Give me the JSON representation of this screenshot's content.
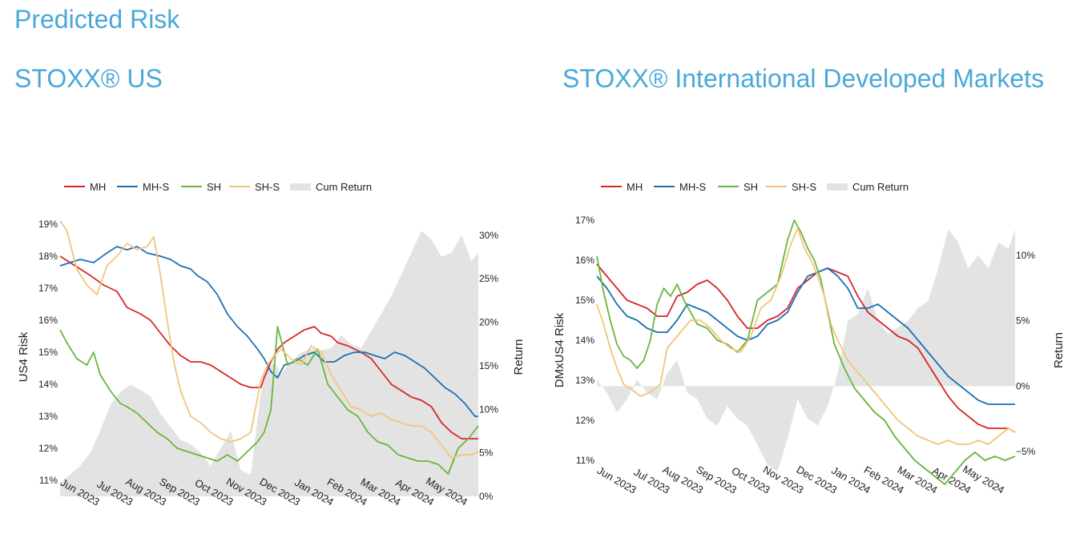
{
  "page": {
    "title": "Predicted Risk",
    "left_title": "STOXX® US",
    "right_title": "STOXX® International Developed Markets"
  },
  "colors": {
    "MH": "#d62728",
    "MH-S": "#1f6fb4",
    "SH": "#6ab53c",
    "SH-S": "#f2c57c",
    "Cum Return": "#e3e3e3"
  },
  "legend": [
    "MH",
    "MH-S",
    "SH",
    "SH-S",
    "Cum Return"
  ],
  "chart_data": [
    {
      "type": "line",
      "panel": "left",
      "ylabel": "US4 Risk",
      "y2label": "Return",
      "x_ticks": [
        "Jun 2023",
        "Jul 2023",
        "Aug 2023",
        "Sep 2023",
        "Oct 2023",
        "Nov 2023",
        "Dec 2023",
        "Jan 2024",
        "Feb 2024",
        "Mar 2024",
        "Apr 2024",
        "May 2024"
      ],
      "x_range": [
        0,
        12.5
      ],
      "ylim": [
        10.5,
        19.2
      ],
      "y_ticks": [
        "11%",
        "12%",
        "13%",
        "14%",
        "15%",
        "16%",
        "17%",
        "18%",
        "19%"
      ],
      "y2lim": [
        0,
        32
      ],
      "y2_ticks": [
        "0%",
        "5%",
        "10%",
        "15%",
        "20%",
        "25%",
        "30%"
      ],
      "series": [
        {
          "name": "MH",
          "axis": "left",
          "x": [
            0,
            0.3,
            0.6,
            0.9,
            1.3,
            1.7,
            2.0,
            2.4,
            2.7,
            3.0,
            3.3,
            3.6,
            3.9,
            4.2,
            4.5,
            4.8,
            5.1,
            5.4,
            5.7,
            6.0,
            6.1,
            6.3,
            6.5,
            6.7,
            7.0,
            7.3,
            7.6,
            7.8,
            8.1,
            8.3,
            8.6,
            9.0,
            9.3,
            9.6,
            9.9,
            10.2,
            10.5,
            10.8,
            11.1,
            11.4,
            11.7,
            12.0,
            12.3,
            12.5
          ],
          "y": [
            18.0,
            17.8,
            17.6,
            17.4,
            17.1,
            16.9,
            16.4,
            16.2,
            16.0,
            15.6,
            15.2,
            14.9,
            14.7,
            14.7,
            14.6,
            14.4,
            14.2,
            14.0,
            13.9,
            13.9,
            14.2,
            14.7,
            15.1,
            15.3,
            15.5,
            15.7,
            15.8,
            15.6,
            15.5,
            15.3,
            15.2,
            15.0,
            14.8,
            14.4,
            14.0,
            13.8,
            13.6,
            13.5,
            13.3,
            12.8,
            12.5,
            12.3,
            12.3,
            12.3
          ]
        },
        {
          "name": "MH-S",
          "axis": "left",
          "x": [
            0,
            0.3,
            0.6,
            1.0,
            1.4,
            1.7,
            2.0,
            2.3,
            2.6,
            3.0,
            3.3,
            3.6,
            3.9,
            4.1,
            4.4,
            4.7,
            5.0,
            5.3,
            5.6,
            5.9,
            6.1,
            6.3,
            6.5,
            6.7,
            7.0,
            7.3,
            7.6,
            7.9,
            8.2,
            8.5,
            8.8,
            9.1,
            9.4,
            9.7,
            10.0,
            10.3,
            10.6,
            10.9,
            11.2,
            11.5,
            11.8,
            12.1,
            12.4,
            12.5
          ],
          "y": [
            17.7,
            17.8,
            17.9,
            17.8,
            18.1,
            18.3,
            18.2,
            18.3,
            18.1,
            18.0,
            17.9,
            17.7,
            17.6,
            17.4,
            17.2,
            16.8,
            16.2,
            15.8,
            15.5,
            15.1,
            14.8,
            14.4,
            14.2,
            14.6,
            14.7,
            14.9,
            15.0,
            14.7,
            14.7,
            14.9,
            15.0,
            15.0,
            14.9,
            14.8,
            15.0,
            14.9,
            14.7,
            14.5,
            14.2,
            13.9,
            13.7,
            13.4,
            13.0,
            13.0
          ]
        },
        {
          "name": "SH",
          "axis": "left",
          "x": [
            0,
            0.2,
            0.5,
            0.8,
            1.0,
            1.2,
            1.5,
            1.8,
            2.0,
            2.3,
            2.6,
            2.9,
            3.2,
            3.5,
            3.8,
            4.1,
            4.4,
            4.7,
            5.0,
            5.3,
            5.6,
            5.9,
            6.1,
            6.3,
            6.5,
            6.8,
            7.1,
            7.4,
            7.7,
            8.0,
            8.3,
            8.6,
            8.9,
            9.2,
            9.5,
            9.8,
            10.1,
            10.4,
            10.7,
            11.0,
            11.3,
            11.6,
            11.9,
            12.2,
            12.5
          ],
          "y": [
            15.7,
            15.3,
            14.8,
            14.6,
            15.0,
            14.3,
            13.8,
            13.4,
            13.3,
            13.1,
            12.8,
            12.5,
            12.3,
            12.0,
            11.9,
            11.8,
            11.7,
            11.6,
            11.8,
            11.6,
            11.9,
            12.2,
            12.5,
            13.2,
            15.8,
            14.6,
            14.8,
            14.6,
            15.1,
            14.0,
            13.6,
            13.2,
            13.0,
            12.5,
            12.2,
            12.1,
            11.8,
            11.7,
            11.6,
            11.6,
            11.5,
            11.2,
            12.0,
            12.3,
            12.7
          ]
        },
        {
          "name": "SH-S",
          "axis": "left",
          "x": [
            0,
            0.2,
            0.5,
            0.8,
            1.1,
            1.4,
            1.7,
            2.0,
            2.3,
            2.6,
            2.8,
            3.0,
            3.2,
            3.4,
            3.6,
            3.9,
            4.2,
            4.5,
            4.8,
            5.1,
            5.4,
            5.7,
            6.0,
            6.2,
            6.4,
            6.6,
            6.9,
            7.2,
            7.5,
            7.8,
            8.1,
            8.4,
            8.7,
            9.0,
            9.3,
            9.6,
            9.9,
            10.2,
            10.5,
            10.8,
            11.1,
            11.4,
            11.7,
            12.0,
            12.3,
            12.5
          ],
          "y": [
            19.1,
            18.8,
            17.6,
            17.1,
            16.8,
            17.7,
            18.0,
            18.4,
            18.2,
            18.3,
            18.6,
            17.4,
            16.0,
            14.7,
            13.8,
            13.0,
            12.8,
            12.5,
            12.3,
            12.2,
            12.3,
            12.5,
            14.1,
            14.6,
            14.9,
            15.1,
            14.8,
            14.6,
            15.2,
            15.0,
            14.3,
            13.8,
            13.3,
            13.2,
            13.0,
            13.1,
            12.9,
            12.8,
            12.7,
            12.7,
            12.5,
            12.1,
            11.7,
            11.8,
            11.8,
            11.9
          ]
        },
        {
          "name": "Cum Return",
          "axis": "right",
          "type": "area",
          "x": [
            0,
            0.3,
            0.6,
            0.9,
            1.2,
            1.5,
            1.8,
            2.1,
            2.4,
            2.7,
            3.0,
            3.3,
            3.6,
            3.9,
            4.2,
            4.5,
            4.8,
            5.1,
            5.4,
            5.7,
            6.0,
            6.2,
            6.4,
            6.6,
            6.9,
            7.2,
            7.5,
            7.8,
            8.1,
            8.4,
            8.7,
            9.0,
            9.3,
            9.6,
            9.9,
            10.2,
            10.5,
            10.8,
            11.1,
            11.4,
            11.7,
            12.0,
            12.3,
            12.5
          ],
          "y": [
            1.5,
            2.5,
            3.5,
            5.0,
            7.5,
            10.5,
            12.0,
            12.8,
            12.2,
            11.5,
            9.5,
            8.0,
            6.5,
            6.0,
            5.0,
            3.5,
            5.5,
            7.5,
            3.0,
            2.5,
            12.0,
            14.5,
            15.5,
            14.0,
            15.5,
            16.5,
            17.0,
            16.8,
            17.0,
            18.5,
            17.5,
            17.0,
            19.0,
            21.0,
            23.0,
            25.5,
            28.0,
            30.5,
            29.5,
            27.5,
            28.0,
            30.0,
            27.0,
            28.0
          ]
        }
      ]
    },
    {
      "type": "line",
      "panel": "right",
      "ylabel": "DMxUS4 Risk",
      "y2label": "Return",
      "x_ticks": [
        "Jun 2023",
        "Jul 2023",
        "Aug 2023",
        "Sep 2023",
        "Oct 2023",
        "Nov 2023",
        "Dec 2023",
        "Jan 2024",
        "Feb 2024",
        "Mar 2024",
        "Apr 2024",
        "May 2024"
      ],
      "x_range": [
        0,
        12.5
      ],
      "ylim": [
        10.4,
        17.1
      ],
      "y_ticks": [
        "11%",
        "12%",
        "13%",
        "14%",
        "15%",
        "16%",
        "17%"
      ],
      "y2lim": [
        -7.5,
        13
      ],
      "y2_ticks": [
        "−5%",
        "0%",
        "5%",
        "10%"
      ],
      "series": [
        {
          "name": "MH",
          "axis": "left",
          "x": [
            0,
            0.3,
            0.6,
            0.9,
            1.2,
            1.5,
            1.8,
            2.1,
            2.4,
            2.7,
            3.0,
            3.3,
            3.6,
            3.9,
            4.2,
            4.5,
            4.8,
            5.1,
            5.4,
            5.7,
            6.0,
            6.3,
            6.6,
            6.9,
            7.2,
            7.5,
            7.8,
            8.1,
            8.4,
            8.7,
            9.0,
            9.3,
            9.6,
            9.9,
            10.2,
            10.5,
            10.8,
            11.1,
            11.4,
            11.7,
            12.0,
            12.3,
            12.5
          ],
          "y": [
            15.9,
            15.6,
            15.3,
            15.0,
            14.9,
            14.8,
            14.6,
            14.6,
            15.1,
            15.2,
            15.4,
            15.5,
            15.3,
            15.0,
            14.6,
            14.3,
            14.3,
            14.5,
            14.6,
            14.8,
            15.3,
            15.5,
            15.7,
            15.8,
            15.7,
            15.6,
            15.1,
            14.7,
            14.5,
            14.3,
            14.1,
            14.0,
            13.8,
            13.4,
            13.0,
            12.6,
            12.3,
            12.1,
            11.9,
            11.8,
            11.8,
            11.8,
            11.7
          ]
        },
        {
          "name": "MH-S",
          "axis": "left",
          "x": [
            0,
            0.3,
            0.6,
            0.9,
            1.2,
            1.5,
            1.8,
            2.1,
            2.4,
            2.7,
            3.0,
            3.3,
            3.6,
            3.9,
            4.2,
            4.5,
            4.8,
            5.1,
            5.4,
            5.7,
            6.0,
            6.3,
            6.6,
            6.9,
            7.2,
            7.5,
            7.8,
            8.1,
            8.4,
            8.7,
            9.0,
            9.3,
            9.6,
            9.9,
            10.2,
            10.5,
            10.8,
            11.1,
            11.4,
            11.7,
            12.0,
            12.3,
            12.5
          ],
          "y": [
            15.6,
            15.3,
            14.9,
            14.6,
            14.5,
            14.3,
            14.2,
            14.2,
            14.5,
            14.9,
            14.8,
            14.7,
            14.5,
            14.3,
            14.1,
            14.0,
            14.1,
            14.4,
            14.5,
            14.7,
            15.2,
            15.6,
            15.7,
            15.8,
            15.6,
            15.3,
            14.8,
            14.8,
            14.9,
            14.7,
            14.5,
            14.3,
            14.0,
            13.7,
            13.4,
            13.1,
            12.9,
            12.7,
            12.5,
            12.4,
            12.4,
            12.4,
            12.4
          ]
        },
        {
          "name": "SH",
          "axis": "left",
          "x": [
            0,
            0.2,
            0.4,
            0.6,
            0.8,
            1.0,
            1.2,
            1.4,
            1.6,
            1.8,
            2.0,
            2.2,
            2.4,
            2.6,
            2.8,
            3.0,
            3.3,
            3.6,
            3.9,
            4.2,
            4.5,
            4.8,
            5.1,
            5.4,
            5.7,
            5.9,
            6.1,
            6.3,
            6.5,
            6.7,
            6.9,
            7.1,
            7.4,
            7.7,
            8.0,
            8.3,
            8.6,
            8.9,
            9.2,
            9.5,
            9.8,
            10.1,
            10.4,
            10.7,
            11.0,
            11.3,
            11.6,
            11.9,
            12.2,
            12.5
          ],
          "y": [
            16.1,
            15.2,
            14.5,
            13.9,
            13.6,
            13.5,
            13.3,
            13.5,
            14.0,
            14.9,
            15.3,
            15.1,
            15.4,
            15.0,
            14.7,
            14.4,
            14.3,
            14.0,
            13.9,
            13.7,
            14.0,
            15.0,
            15.2,
            15.4,
            16.5,
            17.0,
            16.7,
            16.3,
            16.0,
            15.5,
            14.7,
            13.9,
            13.3,
            12.8,
            12.5,
            12.2,
            12.0,
            11.6,
            11.3,
            11.0,
            10.8,
            10.6,
            10.4,
            10.7,
            11.0,
            11.2,
            11.0,
            11.1,
            11.0,
            11.1
          ]
        },
        {
          "name": "SH-S",
          "axis": "left",
          "x": [
            0,
            0.2,
            0.4,
            0.6,
            0.8,
            1.0,
            1.3,
            1.6,
            1.9,
            2.1,
            2.3,
            2.5,
            2.8,
            3.1,
            3.4,
            3.7,
            4.0,
            4.3,
            4.6,
            4.9,
            5.2,
            5.5,
            5.8,
            6.0,
            6.2,
            6.4,
            6.6,
            6.8,
            7.0,
            7.2,
            7.5,
            7.8,
            8.1,
            8.4,
            8.7,
            9.0,
            9.3,
            9.6,
            9.9,
            10.2,
            10.5,
            10.8,
            11.1,
            11.4,
            11.7,
            12.0,
            12.3,
            12.5
          ],
          "y": [
            14.9,
            14.4,
            13.8,
            13.3,
            12.9,
            12.8,
            12.6,
            12.7,
            12.9,
            13.8,
            14.0,
            14.2,
            14.5,
            14.5,
            14.3,
            14.0,
            13.8,
            13.7,
            14.1,
            14.8,
            15.0,
            15.6,
            16.4,
            16.8,
            16.3,
            16.0,
            15.6,
            15.1,
            14.4,
            14.0,
            13.5,
            13.2,
            12.9,
            12.6,
            12.3,
            12.0,
            11.8,
            11.6,
            11.5,
            11.4,
            11.5,
            11.4,
            11.4,
            11.5,
            11.4,
            11.6,
            11.8,
            11.7
          ]
        },
        {
          "name": "Cum Return",
          "axis": "right",
          "type": "area",
          "x": [
            0,
            0.3,
            0.6,
            0.9,
            1.2,
            1.5,
            1.8,
            2.1,
            2.4,
            2.7,
            3.0,
            3.3,
            3.6,
            3.9,
            4.2,
            4.5,
            4.8,
            5.1,
            5.4,
            5.7,
            6.0,
            6.3,
            6.6,
            6.9,
            7.2,
            7.5,
            7.8,
            8.1,
            8.4,
            8.7,
            9.0,
            9.3,
            9.6,
            9.9,
            10.2,
            10.5,
            10.8,
            11.1,
            11.4,
            11.7,
            12.0,
            12.3,
            12.5
          ],
          "y": [
            0.5,
            -0.5,
            -2.0,
            -1.0,
            0.5,
            -0.5,
            -1.0,
            1.0,
            2.0,
            -0.5,
            -1.0,
            -2.5,
            -3.0,
            -1.5,
            -2.5,
            -3.0,
            -4.5,
            -6.0,
            -6.5,
            -4.0,
            -1.0,
            -2.5,
            -3.0,
            -1.5,
            1.0,
            5.0,
            5.5,
            7.5,
            5.0,
            4.0,
            4.5,
            5.0,
            6.0,
            6.5,
            9.0,
            12.0,
            11.0,
            9.0,
            10.0,
            9.0,
            11.0,
            10.5,
            12.0
          ]
        }
      ]
    }
  ]
}
